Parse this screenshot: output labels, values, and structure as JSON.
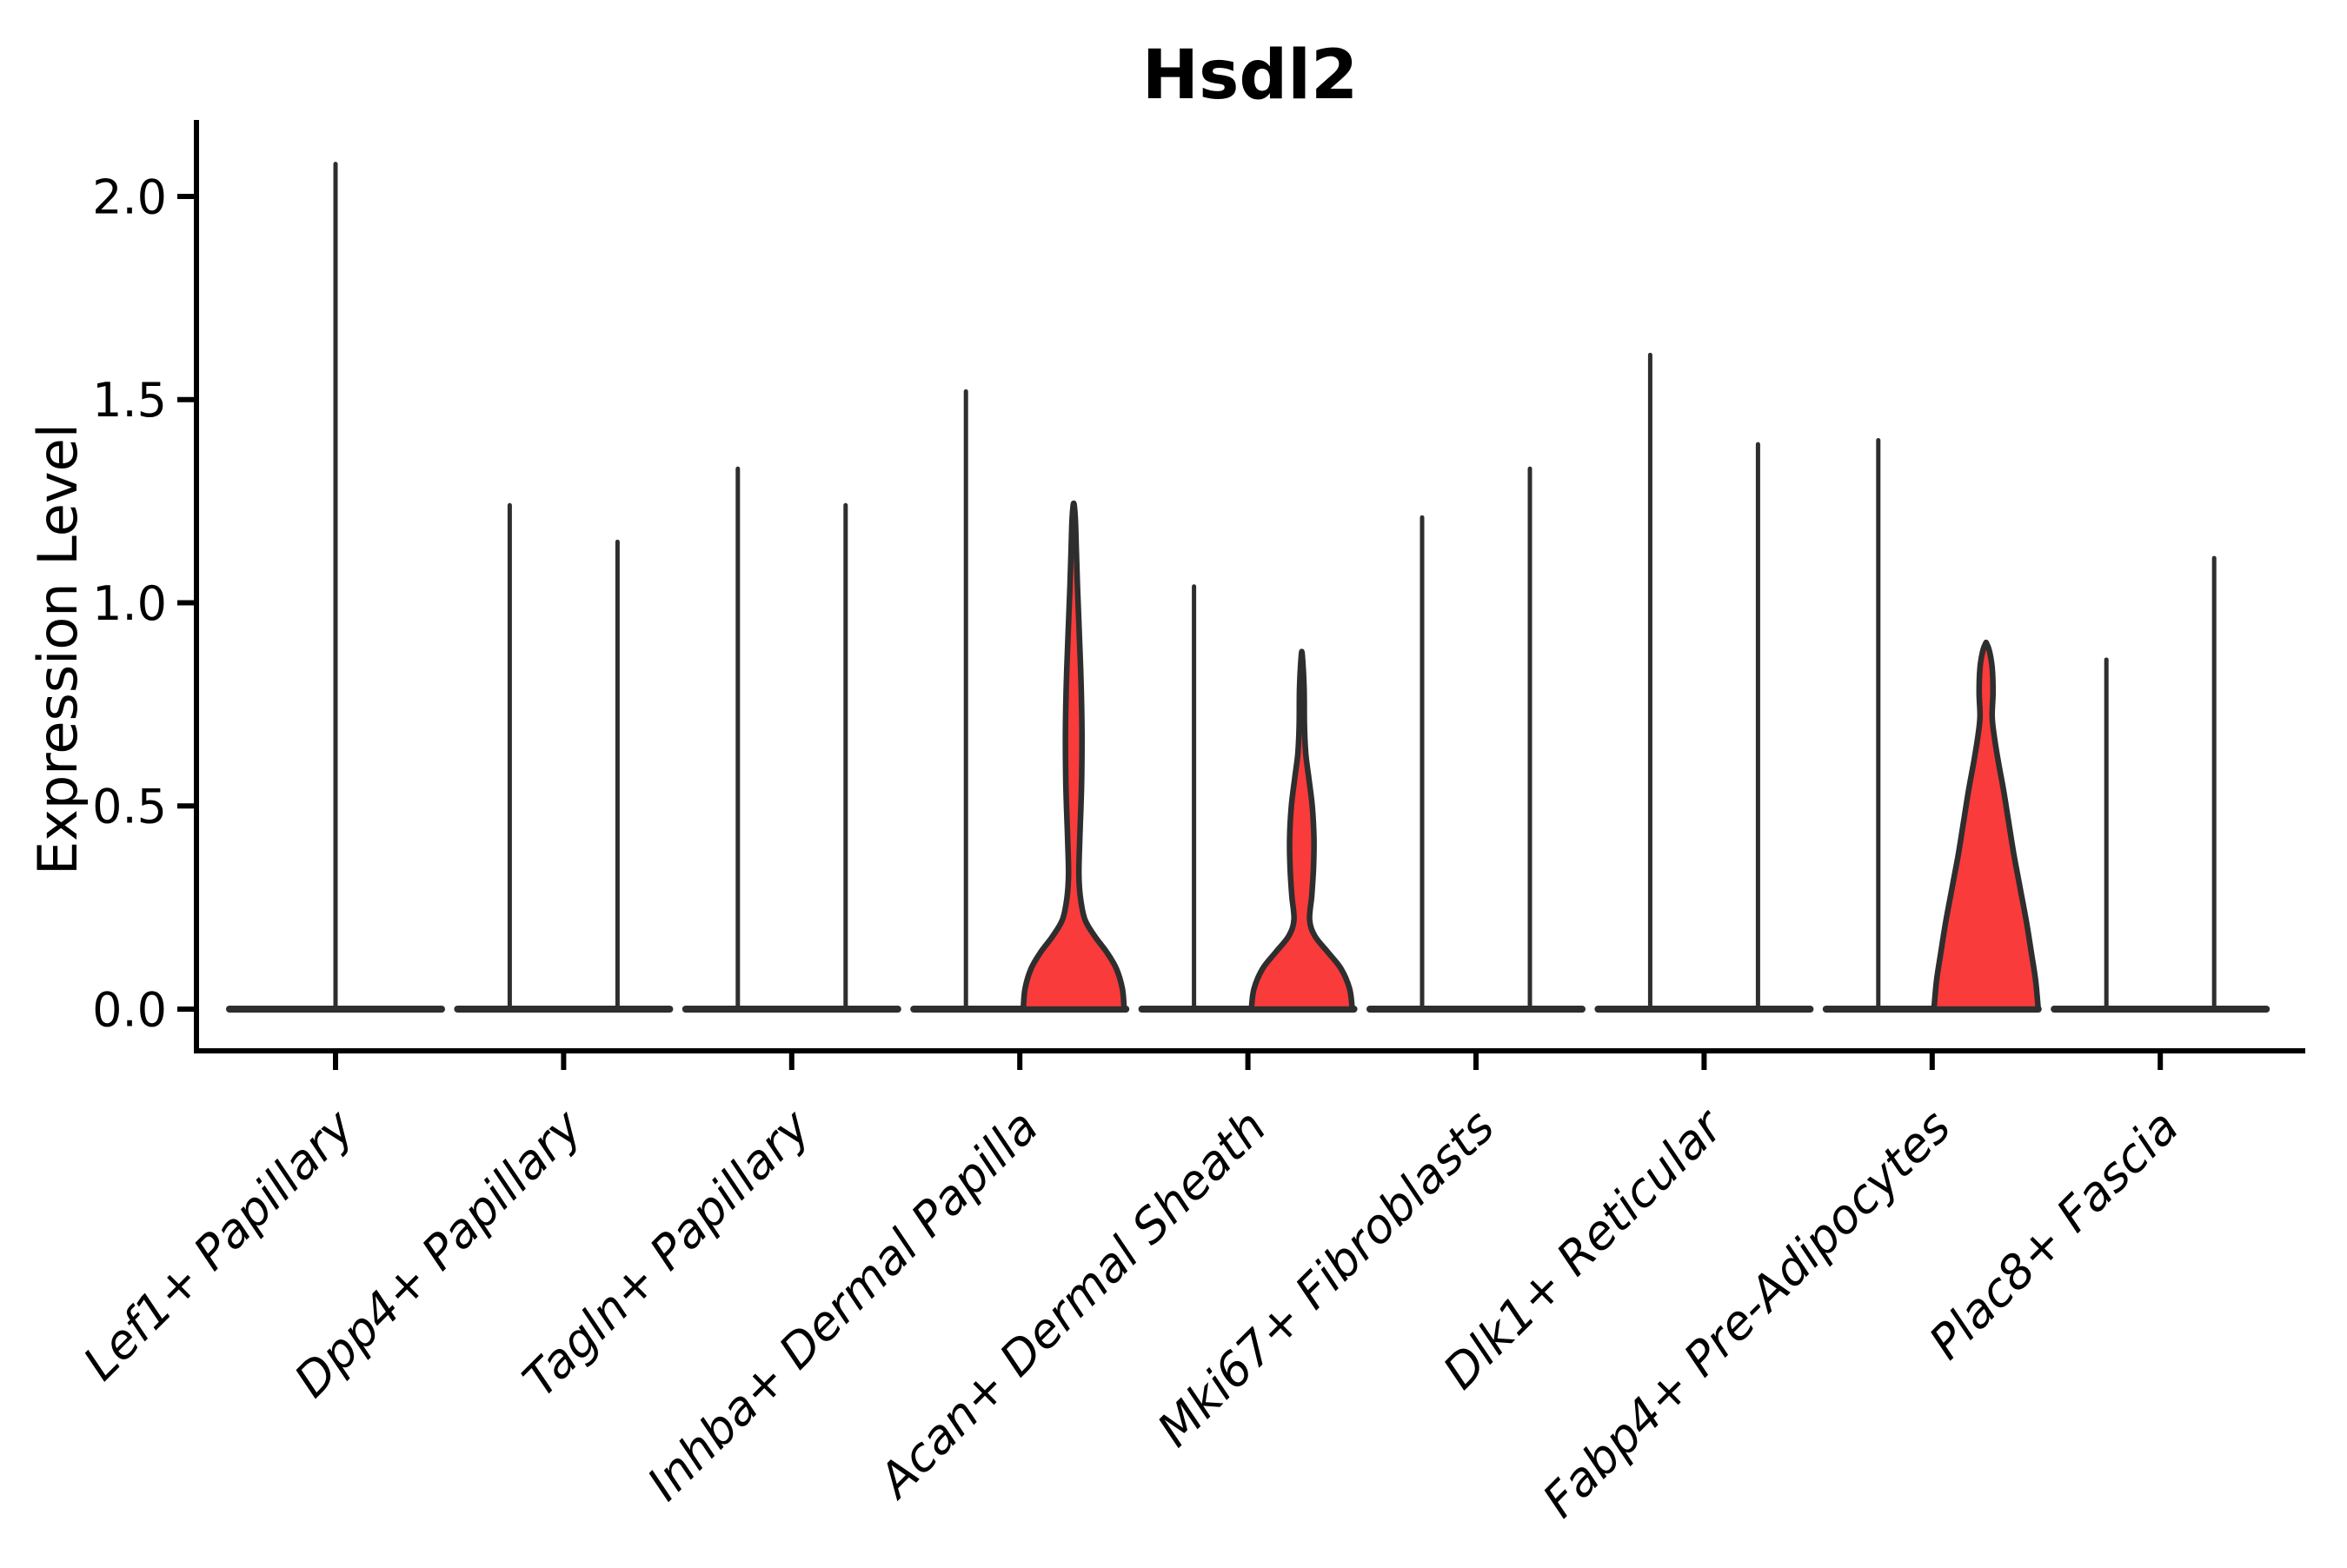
{
  "title": "Hsdl2",
  "chart_data": {
    "type": "violin",
    "title": "Hsdl2",
    "ylabel": "Expression Level",
    "xlabel": "",
    "grid": false,
    "legend": false,
    "ylim": [
      -0.1,
      2.18
    ],
    "yticks": [
      "0.0",
      "0.5",
      "1.0",
      "1.5",
      "2.0"
    ],
    "categories": [
      "Lef1+ Papillary",
      "Dpp4+ Papillary",
      "Tagln+ Papillary",
      "Inhba+ Dermal Papilla",
      "Acan+ Dermal Sheath",
      "Mki67+ Fibroblasts",
      "Dlk1+ Reticular",
      "Fabp4+ Pre-Adipocytes",
      "Plac8+ Fascia"
    ],
    "violins": [
      {
        "category_index": 0,
        "slot": "center",
        "max_expression": 2.08,
        "body": "spike"
      },
      {
        "category_index": 1,
        "slot": "left",
        "max_expression": 1.24,
        "body": "spike"
      },
      {
        "category_index": 1,
        "slot": "right",
        "max_expression": 1.15,
        "body": "spike"
      },
      {
        "category_index": 2,
        "slot": "left",
        "max_expression": 1.33,
        "body": "spike"
      },
      {
        "category_index": 2,
        "slot": "right",
        "max_expression": 1.24,
        "body": "spike"
      },
      {
        "category_index": 3,
        "slot": "left",
        "max_expression": 1.52,
        "body": "spike"
      },
      {
        "category_index": 3,
        "slot": "right",
        "max_expression": 1.24,
        "body": "filled",
        "profile": [
          [
            0,
            58
          ],
          [
            0.05,
            56
          ],
          [
            0.1,
            49
          ],
          [
            0.14,
            38
          ],
          [
            0.18,
            24
          ],
          [
            0.22,
            13
          ],
          [
            0.27,
            8
          ],
          [
            0.33,
            6
          ],
          [
            0.42,
            7
          ],
          [
            0.55,
            9
          ],
          [
            0.68,
            9.5
          ],
          [
            0.8,
            8.5
          ],
          [
            0.92,
            6.5
          ],
          [
            1.03,
            4.5
          ],
          [
            1.13,
            3
          ],
          [
            1.2,
            2
          ],
          [
            1.24,
            0.6
          ]
        ]
      },
      {
        "category_index": 4,
        "slot": "left",
        "max_expression": 1.04,
        "body": "spike"
      },
      {
        "category_index": 4,
        "slot": "right",
        "max_expression": 0.87,
        "body": "filled",
        "profile": [
          [
            0,
            58
          ],
          [
            0.05,
            55
          ],
          [
            0.1,
            45
          ],
          [
            0.14,
            30
          ],
          [
            0.18,
            15
          ],
          [
            0.22,
            9
          ],
          [
            0.28,
            11.5
          ],
          [
            0.35,
            13.5
          ],
          [
            0.42,
            14
          ],
          [
            0.5,
            12
          ],
          [
            0.57,
            8
          ],
          [
            0.63,
            4.5
          ],
          [
            0.7,
            3
          ],
          [
            0.79,
            2.6
          ],
          [
            0.87,
            0.6
          ]
        ]
      },
      {
        "category_index": 5,
        "slot": "left",
        "max_expression": 1.21,
        "body": "spike"
      },
      {
        "category_index": 5,
        "slot": "right",
        "max_expression": 1.33,
        "body": "spike"
      },
      {
        "category_index": 6,
        "slot": "left",
        "max_expression": 1.61,
        "body": "spike"
      },
      {
        "category_index": 6,
        "slot": "right",
        "max_expression": 1.39,
        "body": "spike"
      },
      {
        "category_index": 7,
        "slot": "left",
        "max_expression": 1.4,
        "body": "spike"
      },
      {
        "category_index": 7,
        "slot": "right",
        "max_expression": 0.9,
        "body": "filled",
        "profile": [
          [
            0,
            60
          ],
          [
            0.07,
            57
          ],
          [
            0.14,
            52
          ],
          [
            0.22,
            46
          ],
          [
            0.3,
            39
          ],
          [
            0.38,
            32
          ],
          [
            0.46,
            26
          ],
          [
            0.54,
            20
          ],
          [
            0.61,
            14
          ],
          [
            0.67,
            9.5
          ],
          [
            0.72,
            7
          ],
          [
            0.78,
            8
          ],
          [
            0.84,
            7
          ],
          [
            0.88,
            4
          ],
          [
            0.9,
            0.6
          ]
        ]
      },
      {
        "category_index": 8,
        "slot": "left",
        "max_expression": 0.86,
        "body": "spike"
      },
      {
        "category_index": 8,
        "slot": "right",
        "max_expression": 1.11,
        "body": "spike"
      }
    ],
    "colors": {
      "violin_fill": "#f93b3b",
      "violin_stroke": "#2e2e2e",
      "axis": "#000000",
      "text": "#000000",
      "background": "#ffffff"
    }
  }
}
